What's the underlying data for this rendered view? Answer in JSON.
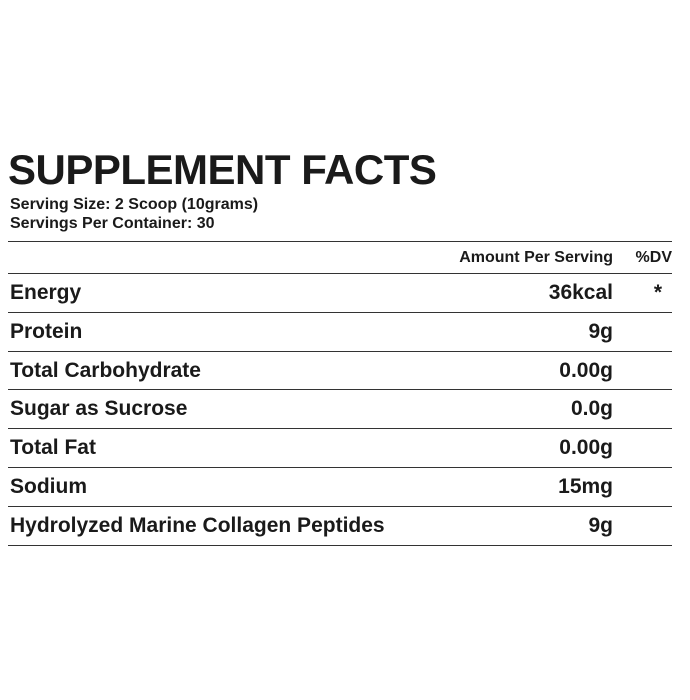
{
  "header": {
    "title": "SUPPLEMENT FACTS",
    "serving_size": "Serving Size: 2 Scoop (10grams)",
    "servings_per_container": "Servings Per Container: 30"
  },
  "table": {
    "columns": [
      "Amount Per Serving",
      "%DV"
    ],
    "rows": [
      [
        "Energy",
        "36kcal",
        "*"
      ],
      [
        "Protein",
        "9g",
        ""
      ],
      [
        "Total Carbohydrate",
        "0.00g",
        ""
      ],
      [
        "Sugar as Sucrose",
        "0.0g",
        ""
      ],
      [
        "Total Fat",
        "0.00g",
        ""
      ],
      [
        "Sodium",
        "15mg",
        ""
      ],
      [
        "Hydrolyzed Marine Collagen Peptides",
        "9g",
        ""
      ]
    ]
  }
}
